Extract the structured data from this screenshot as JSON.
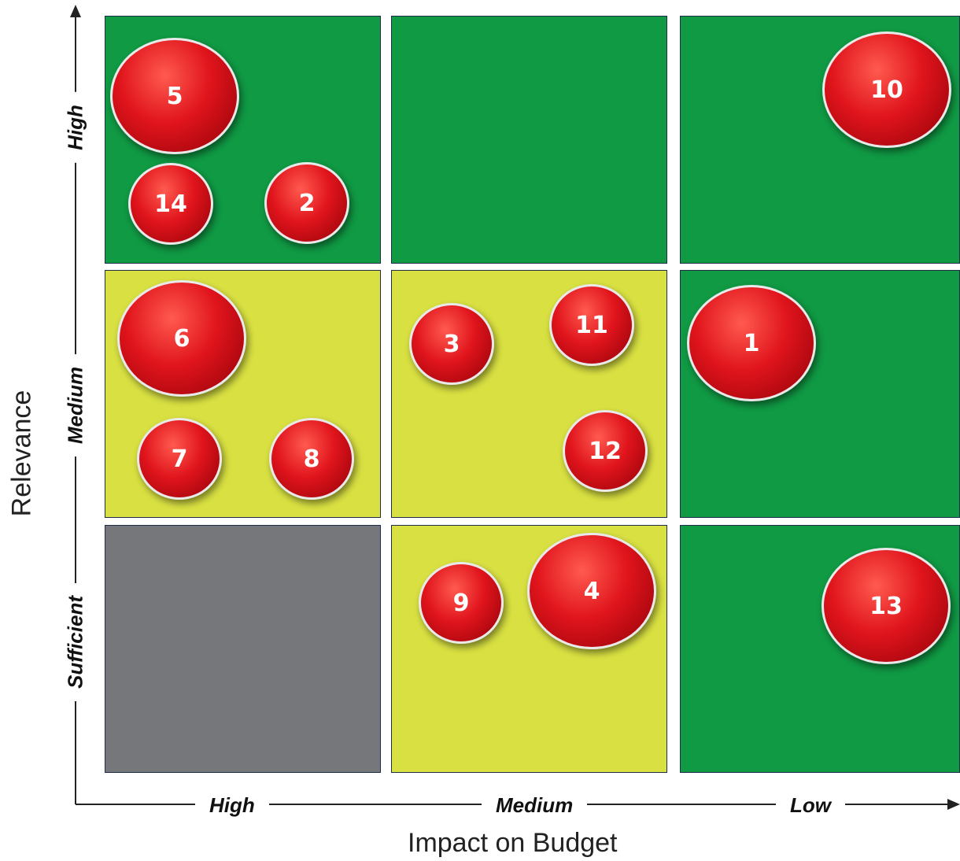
{
  "x_axis": {
    "title": "Impact on Budget",
    "levels": [
      "High",
      "Medium",
      "Low"
    ]
  },
  "y_axis": {
    "title": "Relevance",
    "levels": [
      "High",
      "Medium",
      "Sufficient"
    ]
  },
  "colors": {
    "green": "#109a44",
    "yellow": "#d9e142",
    "gray": "#76777b",
    "bubble": "#e0141c"
  },
  "grid": [
    [
      "green",
      "green",
      "green"
    ],
    [
      "yellow",
      "yellow",
      "green"
    ],
    [
      "gray",
      "yellow",
      "green"
    ]
  ],
  "bubbles": [
    {
      "label": "5",
      "size": "large",
      "relevance": "High",
      "impact": "High"
    },
    {
      "label": "14",
      "size": "small",
      "relevance": "High",
      "impact": "High"
    },
    {
      "label": "2",
      "size": "small",
      "relevance": "High",
      "impact": "High"
    },
    {
      "label": "10",
      "size": "large",
      "relevance": "High",
      "impact": "Low"
    },
    {
      "label": "6",
      "size": "large",
      "relevance": "Medium",
      "impact": "High"
    },
    {
      "label": "7",
      "size": "small",
      "relevance": "Medium",
      "impact": "High"
    },
    {
      "label": "8",
      "size": "small",
      "relevance": "Medium",
      "impact": "High"
    },
    {
      "label": "3",
      "size": "small",
      "relevance": "Medium",
      "impact": "Medium"
    },
    {
      "label": "11",
      "size": "small",
      "relevance": "Medium",
      "impact": "Medium"
    },
    {
      "label": "12",
      "size": "small",
      "relevance": "Medium",
      "impact": "Medium"
    },
    {
      "label": "1",
      "size": "large",
      "relevance": "Medium",
      "impact": "Low"
    },
    {
      "label": "9",
      "size": "small",
      "relevance": "Sufficient",
      "impact": "Medium"
    },
    {
      "label": "4",
      "size": "large",
      "relevance": "Sufficient",
      "impact": "Medium"
    },
    {
      "label": "13",
      "size": "large",
      "relevance": "Sufficient",
      "impact": "Low"
    }
  ]
}
